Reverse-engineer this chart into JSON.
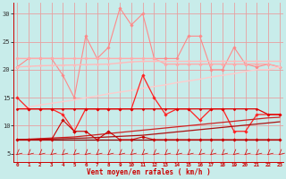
{
  "xlabel": "Vent moyen/en rafales ( km/h )",
  "bg_color": "#c8ecea",
  "grid_color": "#e8a0a0",
  "hours": [
    0,
    1,
    2,
    3,
    4,
    5,
    6,
    7,
    8,
    9,
    10,
    11,
    12,
    13,
    14,
    15,
    16,
    17,
    18,
    19,
    20,
    21,
    22,
    23
  ],
  "series": [
    {
      "name": "rafales_spiky",
      "color": "#ff8888",
      "lw": 0.8,
      "marker": "D",
      "ms": 1.8,
      "values": [
        20.5,
        22,
        22,
        22,
        19,
        15,
        26,
        22,
        24,
        31,
        28,
        30,
        22,
        22,
        22,
        26,
        26,
        20,
        20,
        24,
        21,
        20.5,
        21,
        20.5
      ]
    },
    {
      "name": "rafales_smooth_top",
      "color": "#ffaaaa",
      "lw": 1.0,
      "marker": "D",
      "ms": 1.8,
      "values": [
        22,
        22,
        22,
        22,
        22,
        22,
        22,
        22,
        22,
        22,
        22,
        22,
        22,
        21,
        21,
        21,
        21,
        21,
        21,
        21,
        21,
        21,
        21,
        20.5
      ]
    },
    {
      "name": "rafales_smooth_mid",
      "color": "#ffbbbb",
      "lw": 1.0,
      "marker": "D",
      "ms": 1.5,
      "values": [
        20.5,
        20.6,
        20.7,
        20.75,
        20.8,
        20.85,
        20.9,
        20.95,
        21.0,
        21.2,
        21.4,
        21.5,
        21.5,
        21.5,
        21.5,
        21.5,
        21.5,
        21.5,
        21.5,
        21.5,
        21.5,
        21.5,
        21.5,
        21.5
      ]
    },
    {
      "name": "trend_rafales_rising",
      "color": "#ffcccc",
      "lw": 1.0,
      "marker": null,
      "ms": 0,
      "values": [
        13,
        13.3,
        13.7,
        14.0,
        14.3,
        14.6,
        15.0,
        15.3,
        15.7,
        16.0,
        16.3,
        16.7,
        17.0,
        17.3,
        17.7,
        18.0,
        18.3,
        18.7,
        19.0,
        19.3,
        19.7,
        20.0,
        20.0,
        20.5
      ]
    },
    {
      "name": "vent_moyen_spiky",
      "color": "#ff2222",
      "lw": 0.9,
      "marker": "D",
      "ms": 1.8,
      "values": [
        15,
        13,
        13,
        13,
        12,
        9,
        13,
        13,
        13,
        13,
        13,
        19,
        15,
        12,
        13,
        13,
        11,
        13,
        13,
        9,
        9,
        12,
        12,
        12
      ]
    },
    {
      "name": "vent_moyen_flat",
      "color": "#dd0000",
      "lw": 0.9,
      "marker": "D",
      "ms": 1.5,
      "values": [
        13,
        13,
        13,
        13,
        13,
        13,
        13,
        13,
        13,
        13,
        13,
        13,
        13,
        13,
        13,
        13,
        13,
        13,
        13,
        13,
        13,
        13,
        12,
        12
      ]
    },
    {
      "name": "vent_trend_rising1",
      "color": "#cc2222",
      "lw": 0.9,
      "marker": null,
      "ms": 0,
      "values": [
        7.5,
        7.6,
        7.7,
        7.8,
        7.9,
        8.0,
        8.2,
        8.4,
        8.6,
        8.8,
        9.0,
        9.2,
        9.4,
        9.6,
        9.8,
        10.0,
        10.2,
        10.4,
        10.6,
        10.8,
        11.0,
        11.2,
        11.4,
        11.5
      ]
    },
    {
      "name": "vent_trend_rising2",
      "color": "#aa1111",
      "lw": 0.9,
      "marker": null,
      "ms": 0,
      "values": [
        7.5,
        7.55,
        7.6,
        7.65,
        7.7,
        7.75,
        7.8,
        7.9,
        8.0,
        8.1,
        8.2,
        8.3,
        8.5,
        8.7,
        8.9,
        9.1,
        9.3,
        9.5,
        9.7,
        9.9,
        10.1,
        10.3,
        10.5,
        10.7
      ]
    },
    {
      "name": "vent_low_flat",
      "color": "#880000",
      "lw": 0.9,
      "marker": null,
      "ms": 0,
      "values": [
        7.5,
        7.5,
        7.5,
        7.5,
        7.5,
        7.5,
        7.5,
        7.5,
        7.5,
        7.5,
        7.5,
        7.5,
        7.5,
        7.5,
        7.5,
        7.5,
        7.5,
        7.5,
        7.5,
        7.5,
        7.5,
        7.5,
        7.5,
        7.5
      ]
    },
    {
      "name": "vent_low_spiky",
      "color": "#cc0000",
      "lw": 0.8,
      "marker": "D",
      "ms": 1.8,
      "values": [
        7.5,
        7.5,
        7.5,
        7.5,
        11,
        9,
        9,
        7.5,
        9,
        7.5,
        7.5,
        8,
        7.5,
        7.5,
        7.5,
        7.5,
        7.5,
        7.5,
        7.5,
        7.5,
        7.5,
        7.5,
        7.5,
        7.5
      ]
    }
  ],
  "yticks": [
    5,
    10,
    15,
    20,
    25,
    30
  ],
  "ylim": [
    3.5,
    32
  ],
  "xlim": [
    -0.3,
    23.3
  ],
  "tick_color": "#cc0000",
  "axis_color": "#cc0000",
  "arrow_color": "#cc0000",
  "label_color": "#cc0000"
}
